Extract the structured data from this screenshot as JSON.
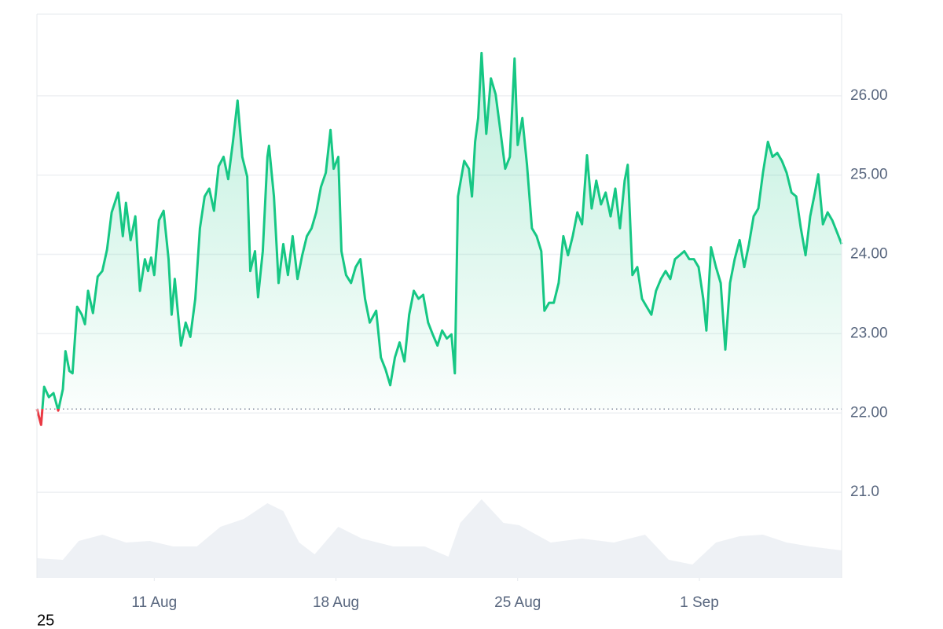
{
  "chart_data": {
    "type": "line",
    "x": [
      6.48,
      6.64,
      6.76,
      6.94,
      7.12,
      7.3,
      7.48,
      7.58,
      7.73,
      7.85,
      8.03,
      8.21,
      8.33,
      8.45,
      8.64,
      8.82,
      9.0,
      9.18,
      9.36,
      9.61,
      9.79,
      9.91,
      10.09,
      10.27,
      10.45,
      10.64,
      10.76,
      10.88,
      11.0,
      11.18,
      11.36,
      11.55,
      11.67,
      11.79,
      12.03,
      12.21,
      12.39,
      12.58,
      12.76,
      12.94,
      13.12,
      13.3,
      13.48,
      13.67,
      13.85,
      14.03,
      14.21,
      14.39,
      14.58,
      14.7,
      14.88,
      15.0,
      15.18,
      15.36,
      15.42,
      15.61,
      15.79,
      15.97,
      16.15,
      16.33,
      16.52,
      16.7,
      16.88,
      17.06,
      17.24,
      17.42,
      17.61,
      17.79,
      17.91,
      18.09,
      18.21,
      18.39,
      18.58,
      18.76,
      18.94,
      19.12,
      19.3,
      19.55,
      19.73,
      19.91,
      20.09,
      20.27,
      20.45,
      20.64,
      20.82,
      21.0,
      21.18,
      21.36,
      21.55,
      21.73,
      21.91,
      22.09,
      22.27,
      22.45,
      22.58,
      22.7,
      22.94,
      23.12,
      23.24,
      23.36,
      23.48,
      23.61,
      23.79,
      23.97,
      24.15,
      24.33,
      24.52,
      24.7,
      24.88,
      25.0,
      25.18,
      25.36,
      25.55,
      25.73,
      25.91,
      26.03,
      26.21,
      26.39,
      26.58,
      26.76,
      26.94,
      27.12,
      27.3,
      27.48,
      27.67,
      27.85,
      28.03,
      28.21,
      28.39,
      28.58,
      28.76,
      28.94,
      29.12,
      29.24,
      29.42,
      29.61,
      29.79,
      29.97,
      30.15,
      30.33,
      30.52,
      30.7,
      30.88,
      31.06,
      31.24,
      31.42,
      31.61,
      31.79,
      31.97,
      32.15,
      32.27,
      32.45,
      32.64,
      32.82,
      33.0,
      33.18,
      33.36,
      33.55,
      33.73,
      33.91,
      34.09,
      34.27,
      34.45,
      34.64,
      34.82,
      35.0,
      35.18,
      35.36,
      35.55,
      35.73,
      35.91,
      36.09,
      36.27,
      36.45,
      36.58,
      36.76,
      36.94,
      37.12,
      37.3,
      37.48
    ],
    "values": [
      22.05,
      21.85,
      22.33,
      22.2,
      22.25,
      22.03,
      22.3,
      22.78,
      22.53,
      22.5,
      23.34,
      23.24,
      23.12,
      23.54,
      23.26,
      23.72,
      23.79,
      24.06,
      24.53,
      24.78,
      24.23,
      24.65,
      24.18,
      24.48,
      23.54,
      23.94,
      23.79,
      23.96,
      23.74,
      24.43,
      24.55,
      23.94,
      23.24,
      23.69,
      22.85,
      23.14,
      22.96,
      23.44,
      24.33,
      24.73,
      24.83,
      24.55,
      25.11,
      25.23,
      24.95,
      25.42,
      25.94,
      25.23,
      24.98,
      23.79,
      24.04,
      23.46,
      24.04,
      25.23,
      25.37,
      24.73,
      23.64,
      24.13,
      23.74,
      24.23,
      23.69,
      23.99,
      24.23,
      24.33,
      24.53,
      24.85,
      25.03,
      25.57,
      25.08,
      25.23,
      24.04,
      23.74,
      23.64,
      23.84,
      23.94,
      23.44,
      23.14,
      23.29,
      22.7,
      22.55,
      22.35,
      22.7,
      22.89,
      22.65,
      23.24,
      23.54,
      23.44,
      23.49,
      23.14,
      22.99,
      22.85,
      23.04,
      22.94,
      22.99,
      22.5,
      24.73,
      25.18,
      25.08,
      24.73,
      25.42,
      25.72,
      26.54,
      25.52,
      26.22,
      26.02,
      25.57,
      25.08,
      25.23,
      26.47,
      25.38,
      25.72,
      25.13,
      24.33,
      24.23,
      24.04,
      23.29,
      23.39,
      23.39,
      23.64,
      24.23,
      23.99,
      24.23,
      24.53,
      24.38,
      25.25,
      24.58,
      24.93,
      24.63,
      24.78,
      24.48,
      24.83,
      24.33,
      24.93,
      25.13,
      23.74,
      23.84,
      23.44,
      23.34,
      23.24,
      23.54,
      23.69,
      23.79,
      23.69,
      23.94,
      23.99,
      24.04,
      23.94,
      23.94,
      23.84,
      23.44,
      23.04,
      24.09,
      23.84,
      23.64,
      22.8,
      23.64,
      23.94,
      24.18,
      23.84,
      24.13,
      24.48,
      24.58,
      25.03,
      25.42,
      25.23,
      25.28,
      25.18,
      25.03,
      24.78,
      24.73,
      24.33,
      23.99,
      24.48,
      24.78,
      25.01,
      24.38,
      24.53,
      24.43,
      24.28,
      24.13
    ],
    "baseline": 22.05,
    "up_color": "#16c784",
    "down_color": "#ea3943",
    "xlim": [
      6.48,
      37.48
    ],
    "xticks": [
      {
        "value": 11,
        "label": "11 Aug"
      },
      {
        "value": 18,
        "label": "18 Aug"
      },
      {
        "value": 25,
        "label": "25 Aug"
      },
      {
        "value": 32,
        "label": "1 Sep"
      }
    ],
    "ylim": [
      19.92,
      27.03
    ],
    "yticks": [
      {
        "value": 21,
        "label": "21.0"
      },
      {
        "value": 22,
        "label": "22.00"
      },
      {
        "value": 23,
        "label": "23.00"
      },
      {
        "value": 24,
        "label": "24.00"
      },
      {
        "value": 25,
        "label": "25.00"
      },
      {
        "value": 26,
        "label": "26.00"
      }
    ],
    "grid": true,
    "volume": {
      "color": "#eef1f5",
      "ylim": [
        0,
        115
      ],
      "x": [
        6.48,
        7.48,
        8.09,
        9.0,
        9.91,
        10.82,
        11.73,
        12.64,
        13.55,
        14.45,
        15.36,
        15.97,
        16.58,
        17.18,
        18.09,
        19.0,
        20.21,
        21.42,
        22.33,
        22.79,
        23.61,
        24.45,
        25.06,
        26.27,
        27.48,
        28.7,
        29.91,
        30.82,
        31.73,
        32.64,
        33.55,
        34.45,
        35.36,
        36.27,
        37.48
      ],
      "values": [
        25,
        23,
        47,
        55,
        45,
        47,
        40,
        40,
        65,
        75,
        95,
        85,
        45,
        30,
        65,
        50,
        40,
        40,
        27,
        70,
        100,
        70,
        67,
        45,
        50,
        45,
        55,
        23,
        17,
        45,
        53,
        55,
        45,
        40,
        35
      ]
    },
    "footer_text": "25"
  }
}
